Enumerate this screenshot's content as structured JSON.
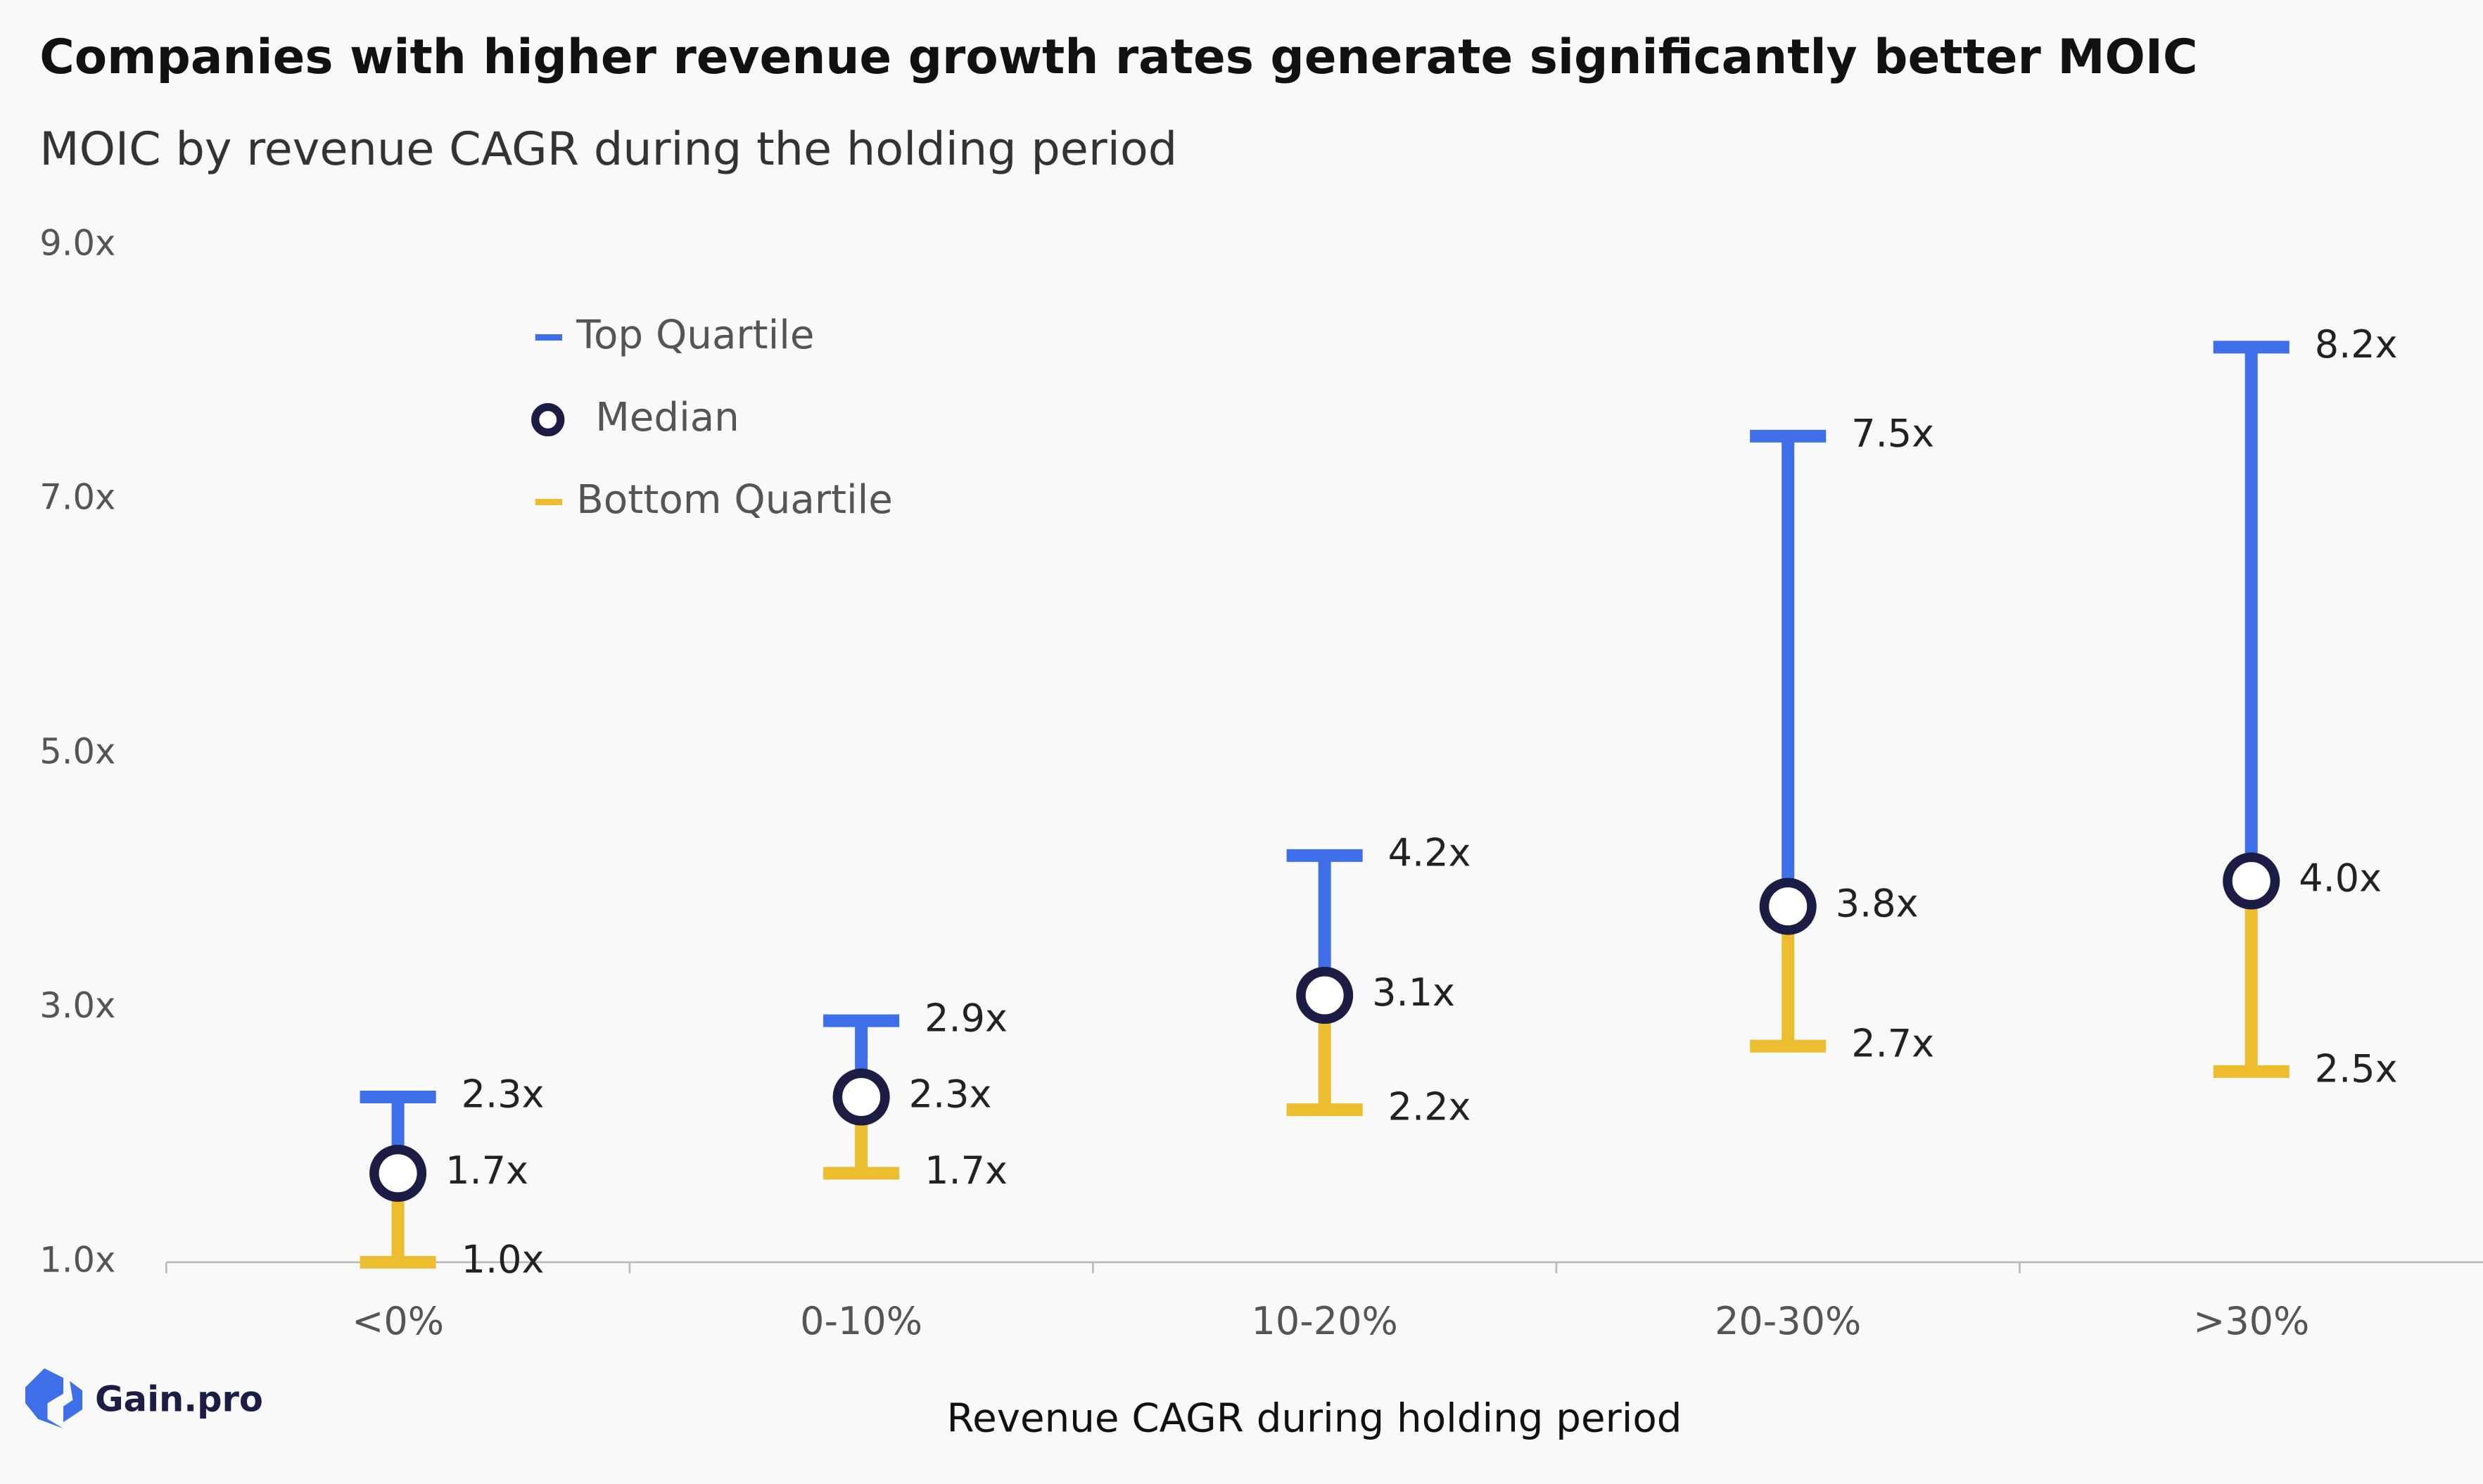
{
  "chart_data": {
    "type": "range",
    "title": "Companies with higher revenue growth rates generate significantly better MOIC",
    "subtitle": "MOIC by revenue CAGR during the holding period",
    "x_label": "Revenue CAGR during holding period",
    "categories": [
      "<0%",
      "0-10%",
      "10-20%",
      "20-30%",
      ">30%"
    ],
    "series": [
      {
        "name": "Top Quartile",
        "color": "#3e6ee8",
        "values": [
          2.3,
          2.9,
          4.2,
          7.5,
          8.2
        ],
        "value_labels": [
          "2.3x",
          "2.9x",
          "4.2x",
          "7.5x",
          "8.2x"
        ]
      },
      {
        "name": "Median",
        "color": "#1b1d45",
        "values": [
          1.7,
          2.3,
          3.1,
          3.8,
          4.0
        ],
        "value_labels": [
          "1.7x",
          "2.3x",
          "3.1x",
          "3.8x",
          "4.0x"
        ]
      },
      {
        "name": "Bottom Quartile",
        "color": "#ecbd2f",
        "values": [
          1.0,
          1.7,
          2.2,
          2.7,
          2.5
        ],
        "value_labels": [
          "1.0x",
          "1.7x",
          "2.2x",
          "2.7x",
          "2.5x"
        ]
      }
    ],
    "ylim": [
      1,
      9
    ],
    "yticks": [
      {
        "value": 1,
        "label": "1.0x"
      },
      {
        "value": 3,
        "label": "3.0x"
      },
      {
        "value": 5,
        "label": "5.0x"
      },
      {
        "value": 7,
        "label": "7.0x"
      },
      {
        "value": 9,
        "label": "9.0x"
      }
    ],
    "legend": "upper left",
    "logo": "Gain.pro"
  }
}
